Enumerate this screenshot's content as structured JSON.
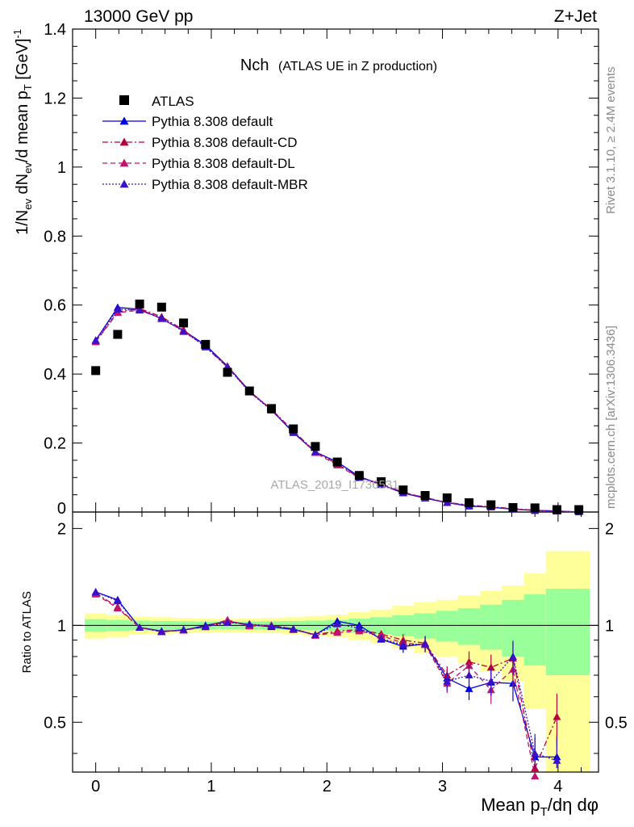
{
  "header": {
    "left": "13000 GeV pp",
    "right": "Z+Jet"
  },
  "side_labels": {
    "rivet": "Rivet 3.1.10, ≥ 2.4M events",
    "mcplots": "mcplots.cern.ch [arXiv:1306.3436]"
  },
  "watermark": "ATLAS_2019_I1736531",
  "chart_data": {
    "type": "scatter",
    "title": "Nch",
    "subtitle": "(ATLAS UE in Z production)",
    "xlim": [
      -0.2,
      4.35
    ],
    "main_ylim": [
      0,
      1.4
    ],
    "ratio_ylim": [
      0.35,
      2.25
    ],
    "x_ticks": [
      "0",
      "1",
      "2",
      "3",
      "4"
    ],
    "main_y_ticks": [
      "0",
      "0.2",
      "0.4",
      "0.6",
      "0.8",
      "1",
      "1.2",
      "1.4"
    ],
    "ratio_y_ticks": [
      "0.5",
      "1",
      "2"
    ],
    "xlabel": "Mean p_T/dη dφ",
    "ylabel": "1/N_ev dN_ev/d mean p_T [GeV]^-1",
    "ratio_ylabel": "Ratio to ATLAS",
    "x": [
      0.0,
      0.19,
      0.38,
      0.57,
      0.76,
      0.95,
      1.14,
      1.33,
      1.52,
      1.71,
      1.9,
      2.09,
      2.28,
      2.47,
      2.66,
      2.85,
      3.04,
      3.23,
      3.42,
      3.61,
      3.8,
      3.99,
      4.18
    ],
    "atlas": [
      0.41,
      0.515,
      0.603,
      0.594,
      0.548,
      0.486,
      0.405,
      0.351,
      0.3,
      0.241,
      0.19,
      0.145,
      0.106,
      0.088,
      0.064,
      0.048,
      0.041,
      0.027,
      0.021,
      0.013,
      0.012,
      0.007,
      0.007
    ],
    "series": [
      {
        "name": "Pythia 8.308 default",
        "color": "#0000dd",
        "dash": "",
        "values": [
          0.498,
          0.593,
          0.588,
          0.56,
          0.526,
          0.484,
          0.423,
          0.351,
          0.296,
          0.23,
          0.174,
          0.145,
          0.103,
          0.079,
          0.055,
          0.04,
          0.027,
          0.017,
          0.014,
          0.008,
          0.005,
          0.003,
          0.0
        ],
        "ratio": [
          1.27,
          1.2,
          0.985,
          0.96,
          0.965,
          1.0,
          1.03,
          1.005,
          0.99,
          0.97,
          0.935,
          1.03,
          1.0,
          0.905,
          0.86,
          0.875,
          0.685,
          0.635,
          0.665,
          0.66,
          0.39,
          0.39,
          null
        ]
      },
      {
        "name": "Pythia 8.308 default-CD",
        "color": "#b8003a",
        "dash": "7,3,2,3",
        "values": [
          0.495,
          0.58,
          0.59,
          0.566,
          0.528,
          0.478,
          0.42,
          0.35,
          0.298,
          0.235,
          0.175,
          0.139,
          0.1,
          0.082,
          0.057,
          0.042,
          0.028,
          0.02,
          0.015,
          0.01,
          0.005,
          0.003,
          0.0
        ],
        "ratio": [
          1.26,
          1.14,
          0.985,
          0.955,
          0.97,
          0.99,
          1.03,
          1.0,
          1.0,
          0.975,
          0.935,
          0.96,
          0.97,
          0.94,
          0.9,
          0.88,
          0.7,
          0.77,
          0.74,
          0.79,
          0.36,
          0.52,
          null
        ]
      },
      {
        "name": "Pythia 8.308 default-DL",
        "color": "#c0126e",
        "dash": "6,4",
        "values": [
          0.493,
          0.578,
          0.585,
          0.561,
          0.525,
          0.48,
          0.422,
          0.348,
          0.297,
          0.232,
          0.172,
          0.136,
          0.099,
          0.08,
          0.056,
          0.042,
          0.027,
          0.019,
          0.014,
          0.009,
          0.004,
          0.003,
          0.0
        ],
        "ratio": [
          1.25,
          1.13,
          0.985,
          0.955,
          0.965,
          0.99,
          1.04,
          0.995,
          1.0,
          0.975,
          0.93,
          0.95,
          0.96,
          0.93,
          0.88,
          0.87,
          0.66,
          0.75,
          0.63,
          0.73,
          0.34,
          null,
          null
        ]
      },
      {
        "name": "Pythia 8.308 default-MBR",
        "color": "#3a10c8",
        "dash": "2,2",
        "values": [
          0.497,
          0.588,
          0.585,
          0.563,
          0.523,
          0.48,
          0.42,
          0.348,
          0.295,
          0.232,
          0.175,
          0.145,
          0.1,
          0.081,
          0.055,
          0.041,
          0.027,
          0.019,
          0.014,
          0.009,
          0.004,
          0.003,
          0.0
        ],
        "ratio": [
          1.27,
          1.19,
          0.985,
          0.955,
          0.97,
          0.99,
          1.02,
          1.01,
          0.995,
          0.975,
          0.935,
          1.01,
          0.98,
          0.91,
          0.87,
          0.875,
          0.67,
          0.7,
          0.67,
          0.8,
          0.4,
          0.38,
          null
        ]
      }
    ],
    "bands": {
      "inner": [
        0.045,
        0.04,
        0.035,
        0.032,
        0.03,
        0.028,
        0.027,
        0.028,
        0.03,
        0.032,
        0.035,
        0.04,
        0.05,
        0.06,
        0.075,
        0.09,
        0.11,
        0.13,
        0.16,
        0.2,
        0.25,
        0.3,
        0.3
      ],
      "outer": [
        0.09,
        0.08,
        0.065,
        0.06,
        0.055,
        0.05,
        0.048,
        0.05,
        0.055,
        0.06,
        0.07,
        0.08,
        0.1,
        0.12,
        0.15,
        0.18,
        0.2,
        0.24,
        0.28,
        0.33,
        0.45,
        0.7,
        0.7
      ]
    },
    "legend_atlas": "ATLAS",
    "legend_position": "top-left"
  }
}
